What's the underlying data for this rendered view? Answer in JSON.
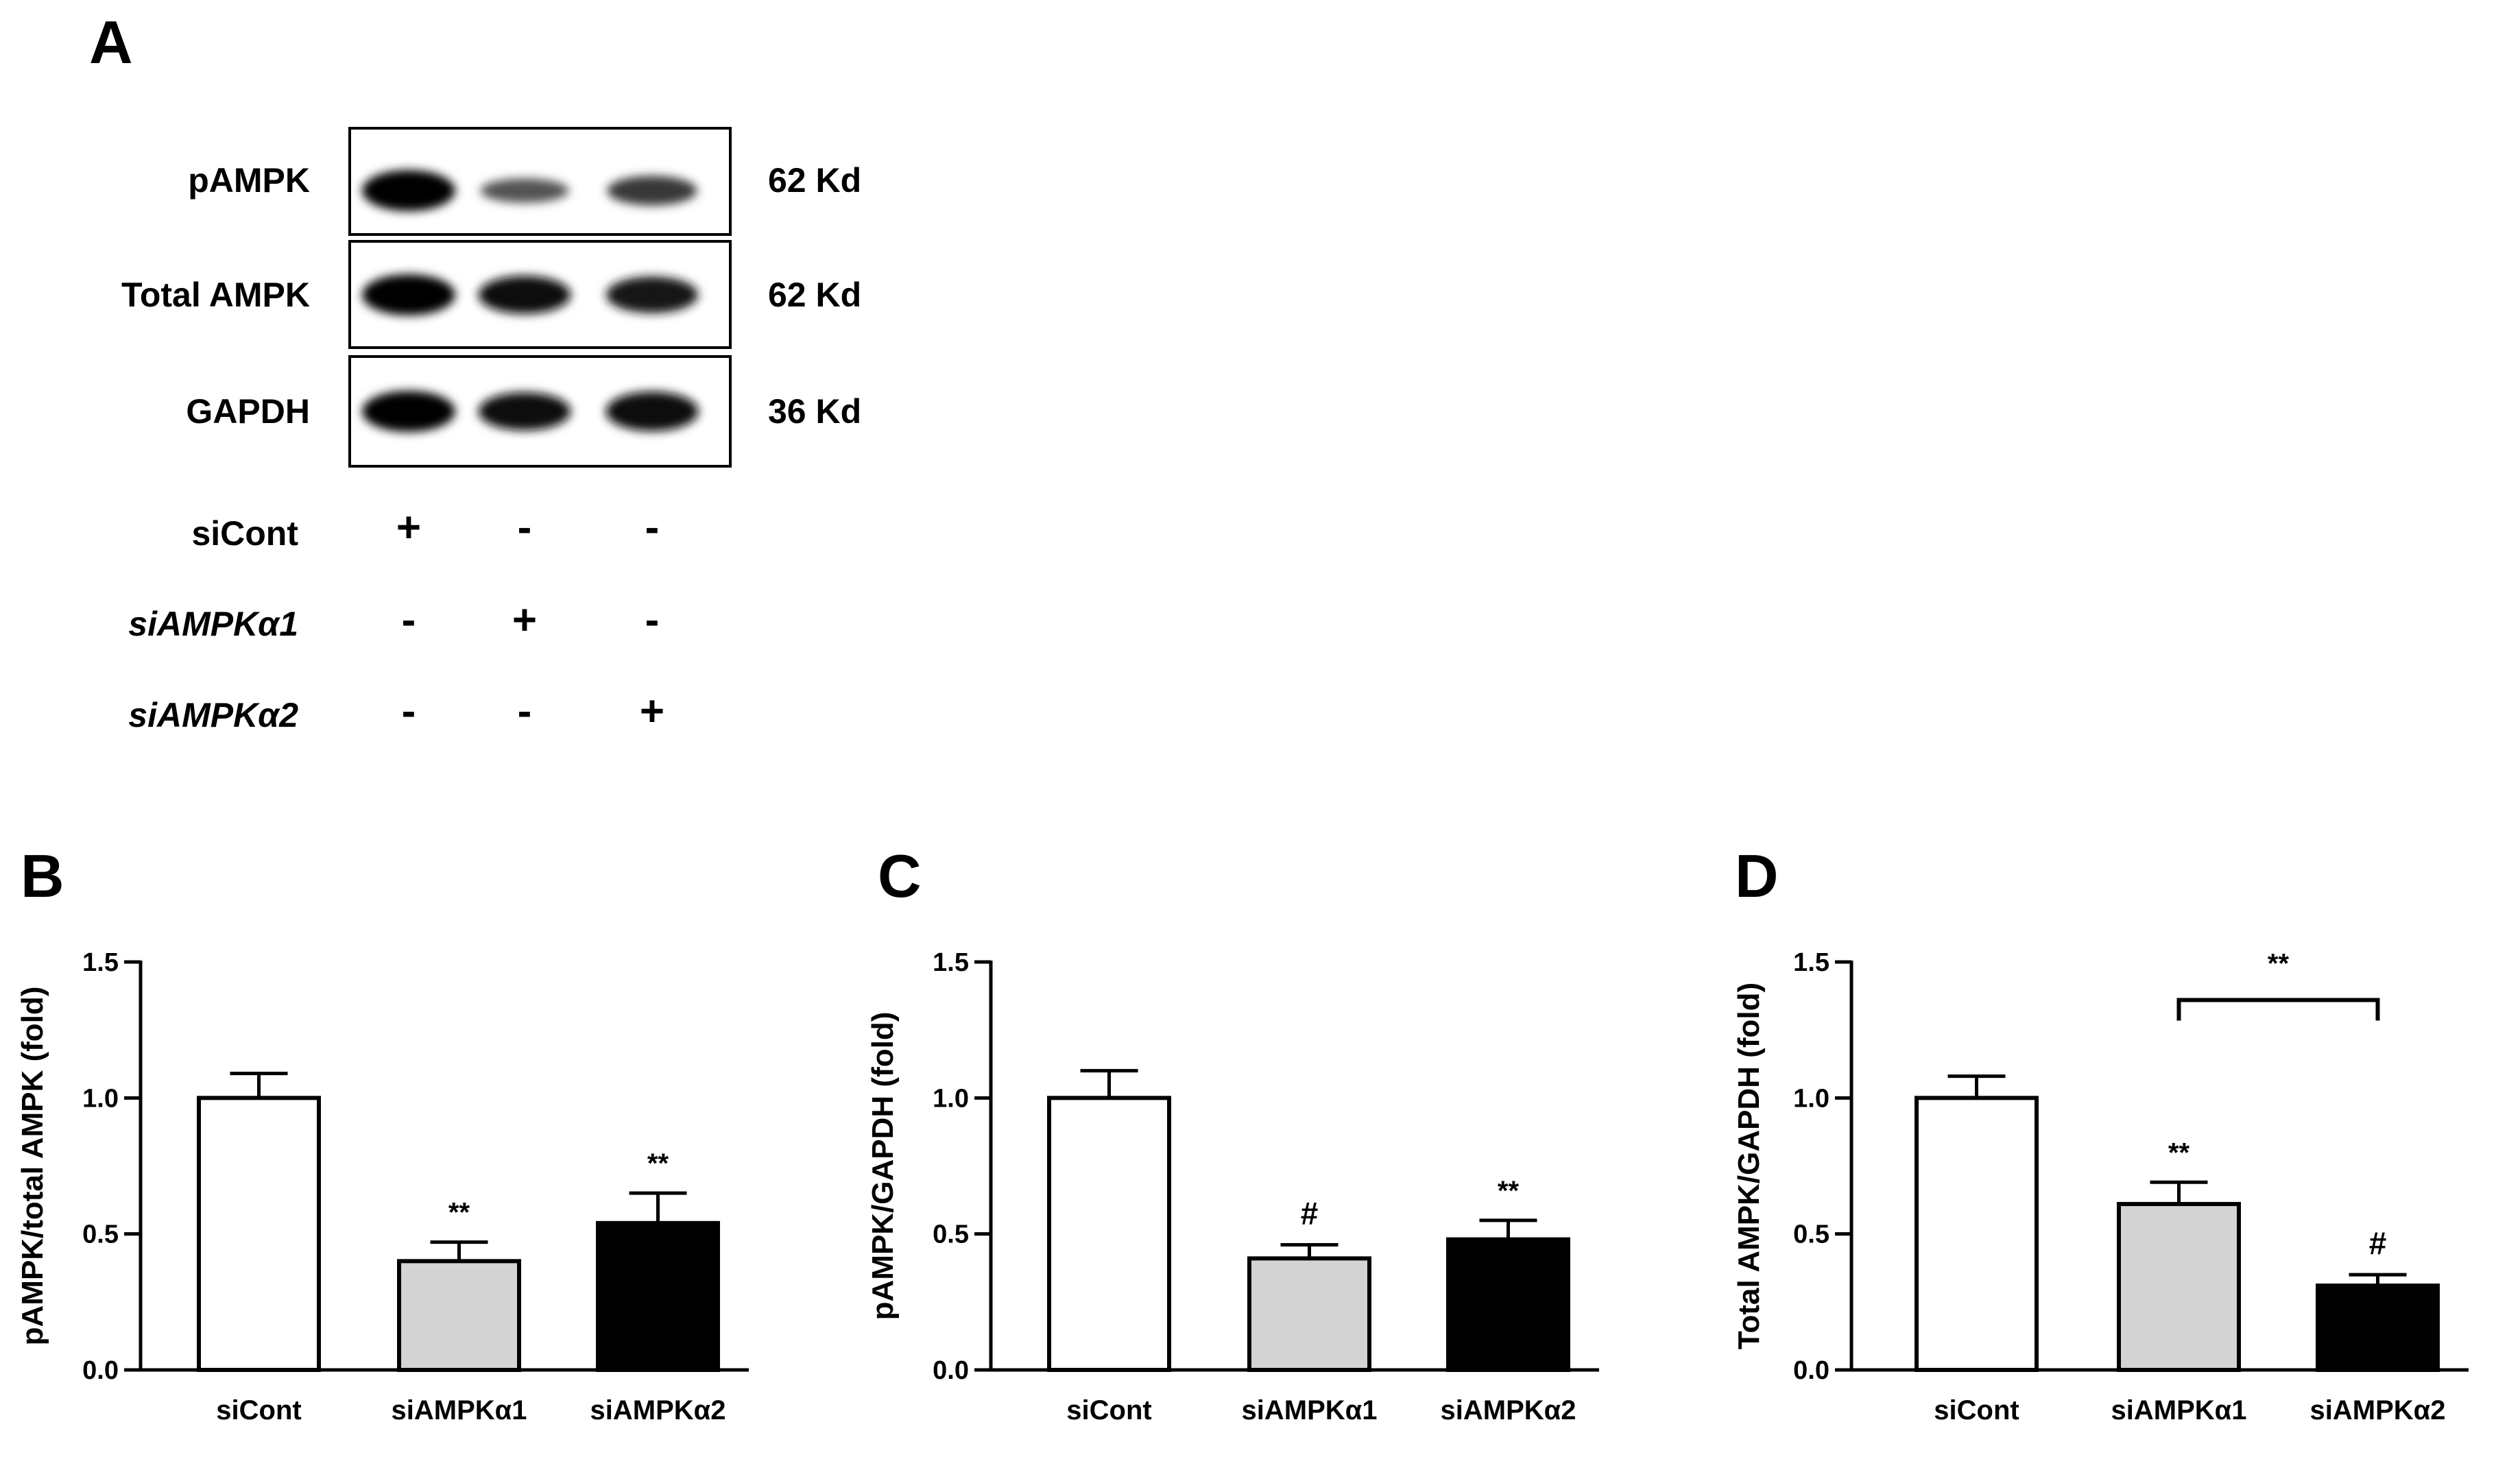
{
  "panel_a": {
    "letter": "A",
    "rows": [
      {
        "label": "pAMPK",
        "size": "62 Kd",
        "bands": [
          1.0,
          0.45,
          0.62
        ]
      },
      {
        "label": "Total AMPK",
        "size": "62 Kd",
        "bands": [
          1.0,
          0.9,
          0.85
        ]
      },
      {
        "label": "GAPDH",
        "size": "36 Kd",
        "bands": [
          1.0,
          0.9,
          0.95
        ]
      }
    ],
    "conditions": [
      {
        "label": "siCont",
        "italic": false,
        "signs": [
          "+",
          "-",
          "-"
        ]
      },
      {
        "label": "siAMPKα1",
        "italic": true,
        "signs": [
          "-",
          "+",
          "-"
        ]
      },
      {
        "label": "siAMPKα2",
        "italic": true,
        "signs": [
          "-",
          "-",
          "+"
        ]
      }
    ]
  },
  "colors": {
    "bar1": "#ffffff",
    "bar2": "#d3d3d3",
    "bar3": "#000000",
    "stroke": "#000000"
  },
  "chart_data": [
    {
      "panel": "B",
      "type": "bar",
      "categories": [
        "siCont",
        "siAMPKα1",
        "siAMPKα2"
      ],
      "values": [
        1.0,
        0.4,
        0.54
      ],
      "errors": [
        0.09,
        0.07,
        0.11
      ],
      "annotations": [
        "",
        "**",
        "**"
      ],
      "ylabel": "pAMPK/total AMPK (fold)",
      "ylim": [
        0,
        1.5
      ],
      "yticks": [
        "0.0",
        "0.5",
        "1.0",
        "1.5"
      ],
      "bracket": null
    },
    {
      "panel": "C",
      "type": "bar",
      "categories": [
        "siCont",
        "siAMPKα1",
        "siAMPKα2"
      ],
      "values": [
        1.0,
        0.41,
        0.48
      ],
      "errors": [
        0.1,
        0.05,
        0.07
      ],
      "annotations": [
        "",
        "#",
        "**"
      ],
      "ylabel": "pAMPK/GAPDH (fold)",
      "ylim": [
        0,
        1.5
      ],
      "yticks": [
        "0.0",
        "0.5",
        "1.0",
        "1.5"
      ],
      "bracket": null
    },
    {
      "panel": "D",
      "type": "bar",
      "categories": [
        "siCont",
        "siAMPKα1",
        "siAMPKα2"
      ],
      "values": [
        1.0,
        0.61,
        0.31
      ],
      "errors": [
        0.08,
        0.08,
        0.04
      ],
      "annotations": [
        "",
        "**",
        "#"
      ],
      "ylabel": "Total AMPK/GAPDH (fold)",
      "ylim": [
        0,
        1.5
      ],
      "yticks": [
        "0.0",
        "0.5",
        "1.0",
        "1.5"
      ],
      "bracket": {
        "from": 1,
        "to": 2,
        "y": 1.36,
        "label": "**"
      }
    }
  ]
}
